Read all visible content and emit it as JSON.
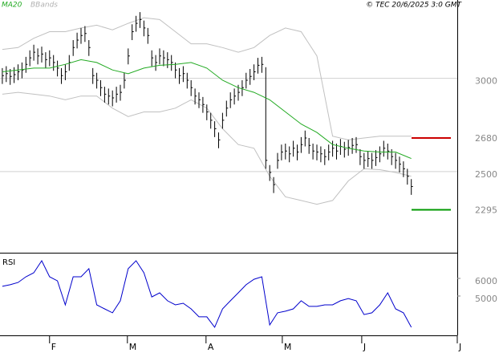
{
  "chart_data": [
    {
      "type": "ohlc",
      "source": "© TEC 20/6/2025 3:0 GMT",
      "color": "#000000",
      "xlim": [
        -0.6,
        115.7
      ],
      "ylim": [
        2065,
        3420
      ],
      "yticks": [
        3000,
        2500
      ],
      "grid": true,
      "high": [
        3055,
        3065,
        3050,
        3060,
        3075,
        3085,
        3115,
        3150,
        3180,
        3160,
        3170,
        3140,
        3150,
        3125,
        3095,
        3055,
        3075,
        3125,
        3205,
        3245,
        3270,
        3280,
        3205,
        3055,
        3030,
        2990,
        2955,
        2945,
        2935,
        2955,
        2965,
        3030,
        3160,
        3290,
        3335,
        3355,
        3310,
        3270,
        3150,
        3125,
        3160,
        3150,
        3140,
        3125,
        3085,
        3055,
        3065,
        3030,
        2990,
        2945,
        2925,
        2900,
        2860,
        2815,
        2770,
        2710,
        2815,
        2880,
        2925,
        2945,
        2965,
        2990,
        3030,
        3050,
        3075,
        3110,
        3115,
        3060,
        2535,
        2470,
        2600,
        2645,
        2650,
        2635,
        2665,
        2645,
        2685,
        2720,
        2680,
        2650,
        2645,
        2635,
        2620,
        2645,
        2665,
        2650,
        2675,
        2660,
        2670,
        2680,
        2685,
        2620,
        2600,
        2610,
        2600,
        2615,
        2635,
        2665,
        2650,
        2620,
        2600,
        2580,
        2555,
        2515,
        2460
      ],
      "low": [
        2970,
        2980,
        2965,
        2975,
        2990,
        3000,
        3030,
        3065,
        3095,
        3075,
        3085,
        3055,
        3065,
        3040,
        3010,
        2970,
        2990,
        3040,
        3120,
        3160,
        3185,
        3195,
        3120,
        2970,
        2945,
        2905,
        2870,
        2860,
        2850,
        2870,
        2880,
        2945,
        3075,
        3205,
        3250,
        3270,
        3225,
        3185,
        3065,
        3040,
        3075,
        3065,
        3055,
        3040,
        3000,
        2970,
        2980,
        2945,
        2905,
        2860,
        2840,
        2815,
        2775,
        2730,
        2685,
        2625,
        2730,
        2795,
        2840,
        2860,
        2880,
        2905,
        2945,
        2965,
        2990,
        3025,
        3030,
        2515,
        2450,
        2385,
        2515,
        2560,
        2565,
        2550,
        2580,
        2560,
        2600,
        2635,
        2595,
        2565,
        2560,
        2550,
        2535,
        2560,
        2580,
        2565,
        2590,
        2575,
        2585,
        2595,
        2600,
        2535,
        2515,
        2525,
        2515,
        2530,
        2550,
        2580,
        2565,
        2535,
        2515,
        2495,
        2470,
        2430,
        2375
      ],
      "close": [
        3015,
        3025,
        3010,
        3020,
        3035,
        3045,
        3075,
        3110,
        3140,
        3120,
        3130,
        3100,
        3110,
        3085,
        3055,
        3015,
        3035,
        3085,
        3165,
        3205,
        3230,
        3240,
        3165,
        3015,
        2990,
        2950,
        2915,
        2905,
        2895,
        2915,
        2925,
        2990,
        3120,
        3250,
        3295,
        3315,
        3270,
        3230,
        3110,
        3085,
        3120,
        3110,
        3100,
        3085,
        3045,
        3015,
        3025,
        2990,
        2950,
        2905,
        2885,
        2860,
        2820,
        2775,
        2730,
        2670,
        2775,
        2840,
        2885,
        2905,
        2925,
        2950,
        2990,
        3010,
        3035,
        3070,
        3075,
        2560,
        2495,
        2430,
        2560,
        2605,
        2610,
        2595,
        2625,
        2605,
        2645,
        2680,
        2640,
        2610,
        2605,
        2595,
        2580,
        2605,
        2625,
        2610,
        2635,
        2620,
        2630,
        2640,
        2645,
        2580,
        2560,
        2570,
        2560,
        2575,
        2595,
        2625,
        2610,
        2580,
        2560,
        2540,
        2515,
        2475,
        2420
      ],
      "lines": [
        {
          "name": "MA20",
          "color": "#22aa22",
          "x": [
            0,
            4,
            8,
            12,
            16,
            20,
            24,
            28,
            32,
            36,
            40,
            44,
            48,
            52,
            56,
            60,
            64,
            68,
            72,
            76,
            80,
            84,
            88,
            92,
            96,
            100,
            104
          ],
          "values": [
            3035,
            3045,
            3055,
            3055,
            3075,
            3100,
            3085,
            3045,
            3025,
            3055,
            3070,
            3075,
            3085,
            3055,
            2990,
            2950,
            2925,
            2885,
            2820,
            2755,
            2710,
            2645,
            2625,
            2610,
            2605,
            2605,
            2570
          ]
        },
        {
          "name": "BBands",
          "color": "#c0c0c0",
          "x": [
            0,
            4,
            8,
            12,
            16,
            20,
            24,
            28,
            32,
            36,
            40,
            44,
            48,
            52,
            56,
            60,
            64,
            68,
            72,
            76,
            80,
            84,
            88,
            92,
            96,
            100,
            104
          ],
          "upper": [
            3155,
            3165,
            3215,
            3250,
            3250,
            3270,
            3285,
            3260,
            3295,
            3325,
            3315,
            3250,
            3185,
            3185,
            3165,
            3140,
            3165,
            3230,
            3270,
            3250,
            3120,
            2690,
            2670,
            2680,
            2690,
            2690,
            2690
          ],
          "lower": [
            2915,
            2925,
            2915,
            2905,
            2885,
            2905,
            2905,
            2840,
            2795,
            2820,
            2820,
            2840,
            2885,
            2840,
            2730,
            2645,
            2625,
            2475,
            2365,
            2345,
            2325,
            2345,
            2450,
            2515,
            2510,
            2495,
            2475
          ]
        }
      ],
      "levels": [
        {
          "value": 2680,
          "color": "#cc0000"
        },
        {
          "value": 2295,
          "color": "#009900"
        }
      ]
    },
    {
      "type": "line",
      "title": "RSI",
      "color": "#0000cc",
      "xlim": [
        -0.6,
        115.7
      ],
      "ylim": [
        2770,
        7410
      ],
      "yticks": [
        6000,
        5000
      ],
      "grid": false,
      "xticks": [
        {
          "value": 12,
          "label": "F"
        },
        {
          "value": 31.8,
          "label": "M"
        },
        {
          "value": 51.8,
          "label": "A"
        },
        {
          "value": 71.2,
          "label": "M"
        },
        {
          "value": 91.4,
          "label": "J"
        },
        {
          "value": 115.7,
          "label": "J"
        }
      ],
      "x": [
        0,
        2,
        4,
        6,
        8,
        10,
        12,
        14,
        16,
        18,
        20,
        22,
        24,
        26,
        28,
        30,
        32,
        34,
        36,
        38,
        40,
        42,
        44,
        46,
        48,
        50,
        52,
        54,
        56,
        58,
        60,
        62,
        64,
        66,
        68,
        70,
        72,
        74,
        76,
        78,
        80,
        82,
        84,
        86,
        88,
        90,
        92,
        94,
        96,
        98,
        100,
        102,
        104
      ],
      "values": [
        5550,
        5640,
        5770,
        6090,
        6320,
        7000,
        6090,
        5860,
        4500,
        6090,
        6090,
        6550,
        4500,
        4270,
        4050,
        4730,
        6550,
        7000,
        6320,
        4950,
        5180,
        4730,
        4500,
        4590,
        4270,
        3820,
        3820,
        3230,
        4270,
        4730,
        5180,
        5640,
        5950,
        6090,
        3360,
        4050,
        4140,
        4270,
        4730,
        4410,
        4410,
        4500,
        4500,
        4730,
        4860,
        4730,
        3950,
        4050,
        4500,
        5180,
        4270,
        4050,
        3230
      ]
    }
  ]
}
